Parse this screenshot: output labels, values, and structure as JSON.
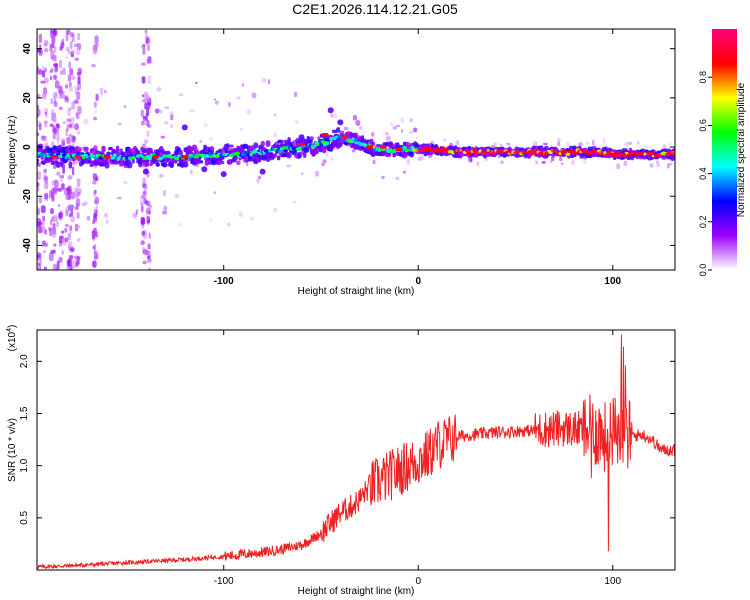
{
  "title": "C2E1.2026.114.12.21.G05",
  "chart_data": [
    {
      "type": "heatmap",
      "xlabel": "Height of straight line (km)",
      "ylabel": "Frequency (Hz)",
      "xlim": [
        -196,
        132
      ],
      "ylim": [
        -50,
        48
      ],
      "x_ticks": [
        -100,
        0,
        100
      ],
      "y_ticks": [
        -40,
        -20,
        0,
        20,
        40
      ],
      "grid": false,
      "colorbar": {
        "label": "Normalized spectral amplitude",
        "range": [
          0,
          1
        ],
        "ticks": [
          0.0,
          0.2,
          0.4,
          0.6,
          0.8
        ],
        "tick_labels": [
          "0.0",
          "0.2",
          "0.4",
          "0.6",
          "0.8"
        ],
        "colors": [
          "#ffffff",
          "#9d00ff",
          "#0000ff",
          "#00ffff",
          "#00ff00",
          "#ffff00",
          "#ff0000",
          "#ff0080"
        ]
      },
      "ridge": {
        "x": [
          -196,
          -180,
          -160,
          -140,
          -120,
          -100,
          -90,
          -80,
          -70,
          -60,
          -50,
          -44,
          -40,
          -35,
          -30,
          -25,
          -20,
          -10,
          0,
          10,
          20,
          40,
          60,
          80,
          95,
          100,
          105,
          110,
          120,
          132
        ],
        "frequency": [
          -3,
          -4,
          -4,
          -4,
          -4,
          -3,
          -3,
          -2,
          -1,
          0,
          1,
          3,
          4,
          3,
          2,
          0,
          -1,
          -1,
          -1,
          -1,
          -2,
          -2,
          -2,
          -2,
          -2,
          -3,
          -3,
          -3,
          -3,
          -3
        ]
      }
    },
    {
      "type": "line",
      "xlabel": "Height of straight line (km)",
      "ylabel": "SNR (10 * v/v)",
      "y_multiplier": "(x10",
      "y_multiplier_exp": "4",
      "xlim": [
        -196,
        132
      ],
      "ylim": [
        0,
        2.3
      ],
      "x_ticks": [
        -100,
        0,
        100
      ],
      "y_ticks": [
        0.5,
        1.0,
        1.5,
        2.0
      ],
      "y_tick_labels": [
        "0.5",
        "1.0",
        "1.5",
        "2.0"
      ],
      "grid": false,
      "series": [
        {
          "color": "#ee2222",
          "x": [
            -196,
            -180,
            -170,
            -160,
            -140,
            -120,
            -100,
            -90,
            -80,
            -70,
            -60,
            -50,
            -45,
            -40,
            -35,
            -30,
            -25,
            -20,
            -15,
            -10,
            -5,
            0,
            5,
            10,
            20,
            30,
            40,
            50,
            60,
            65,
            70,
            75,
            80,
            85,
            90,
            93,
            95,
            97,
            100,
            105,
            107,
            110,
            115,
            120,
            125,
            132
          ],
          "values": [
            0.03,
            0.04,
            0.05,
            0.06,
            0.08,
            0.1,
            0.13,
            0.15,
            0.17,
            0.2,
            0.24,
            0.35,
            0.45,
            0.55,
            0.6,
            0.68,
            0.8,
            0.85,
            0.9,
            0.95,
            1.0,
            1.05,
            1.1,
            1.2,
            1.28,
            1.3,
            1.32,
            1.33,
            1.34,
            1.35,
            1.35,
            1.36,
            1.35,
            1.34,
            1.33,
            1.32,
            1.3,
            1.25,
            1.32,
            1.33,
            1.3,
            1.28,
            1.3,
            1.25,
            1.15,
            1.15
          ]
        }
      ]
    }
  ]
}
